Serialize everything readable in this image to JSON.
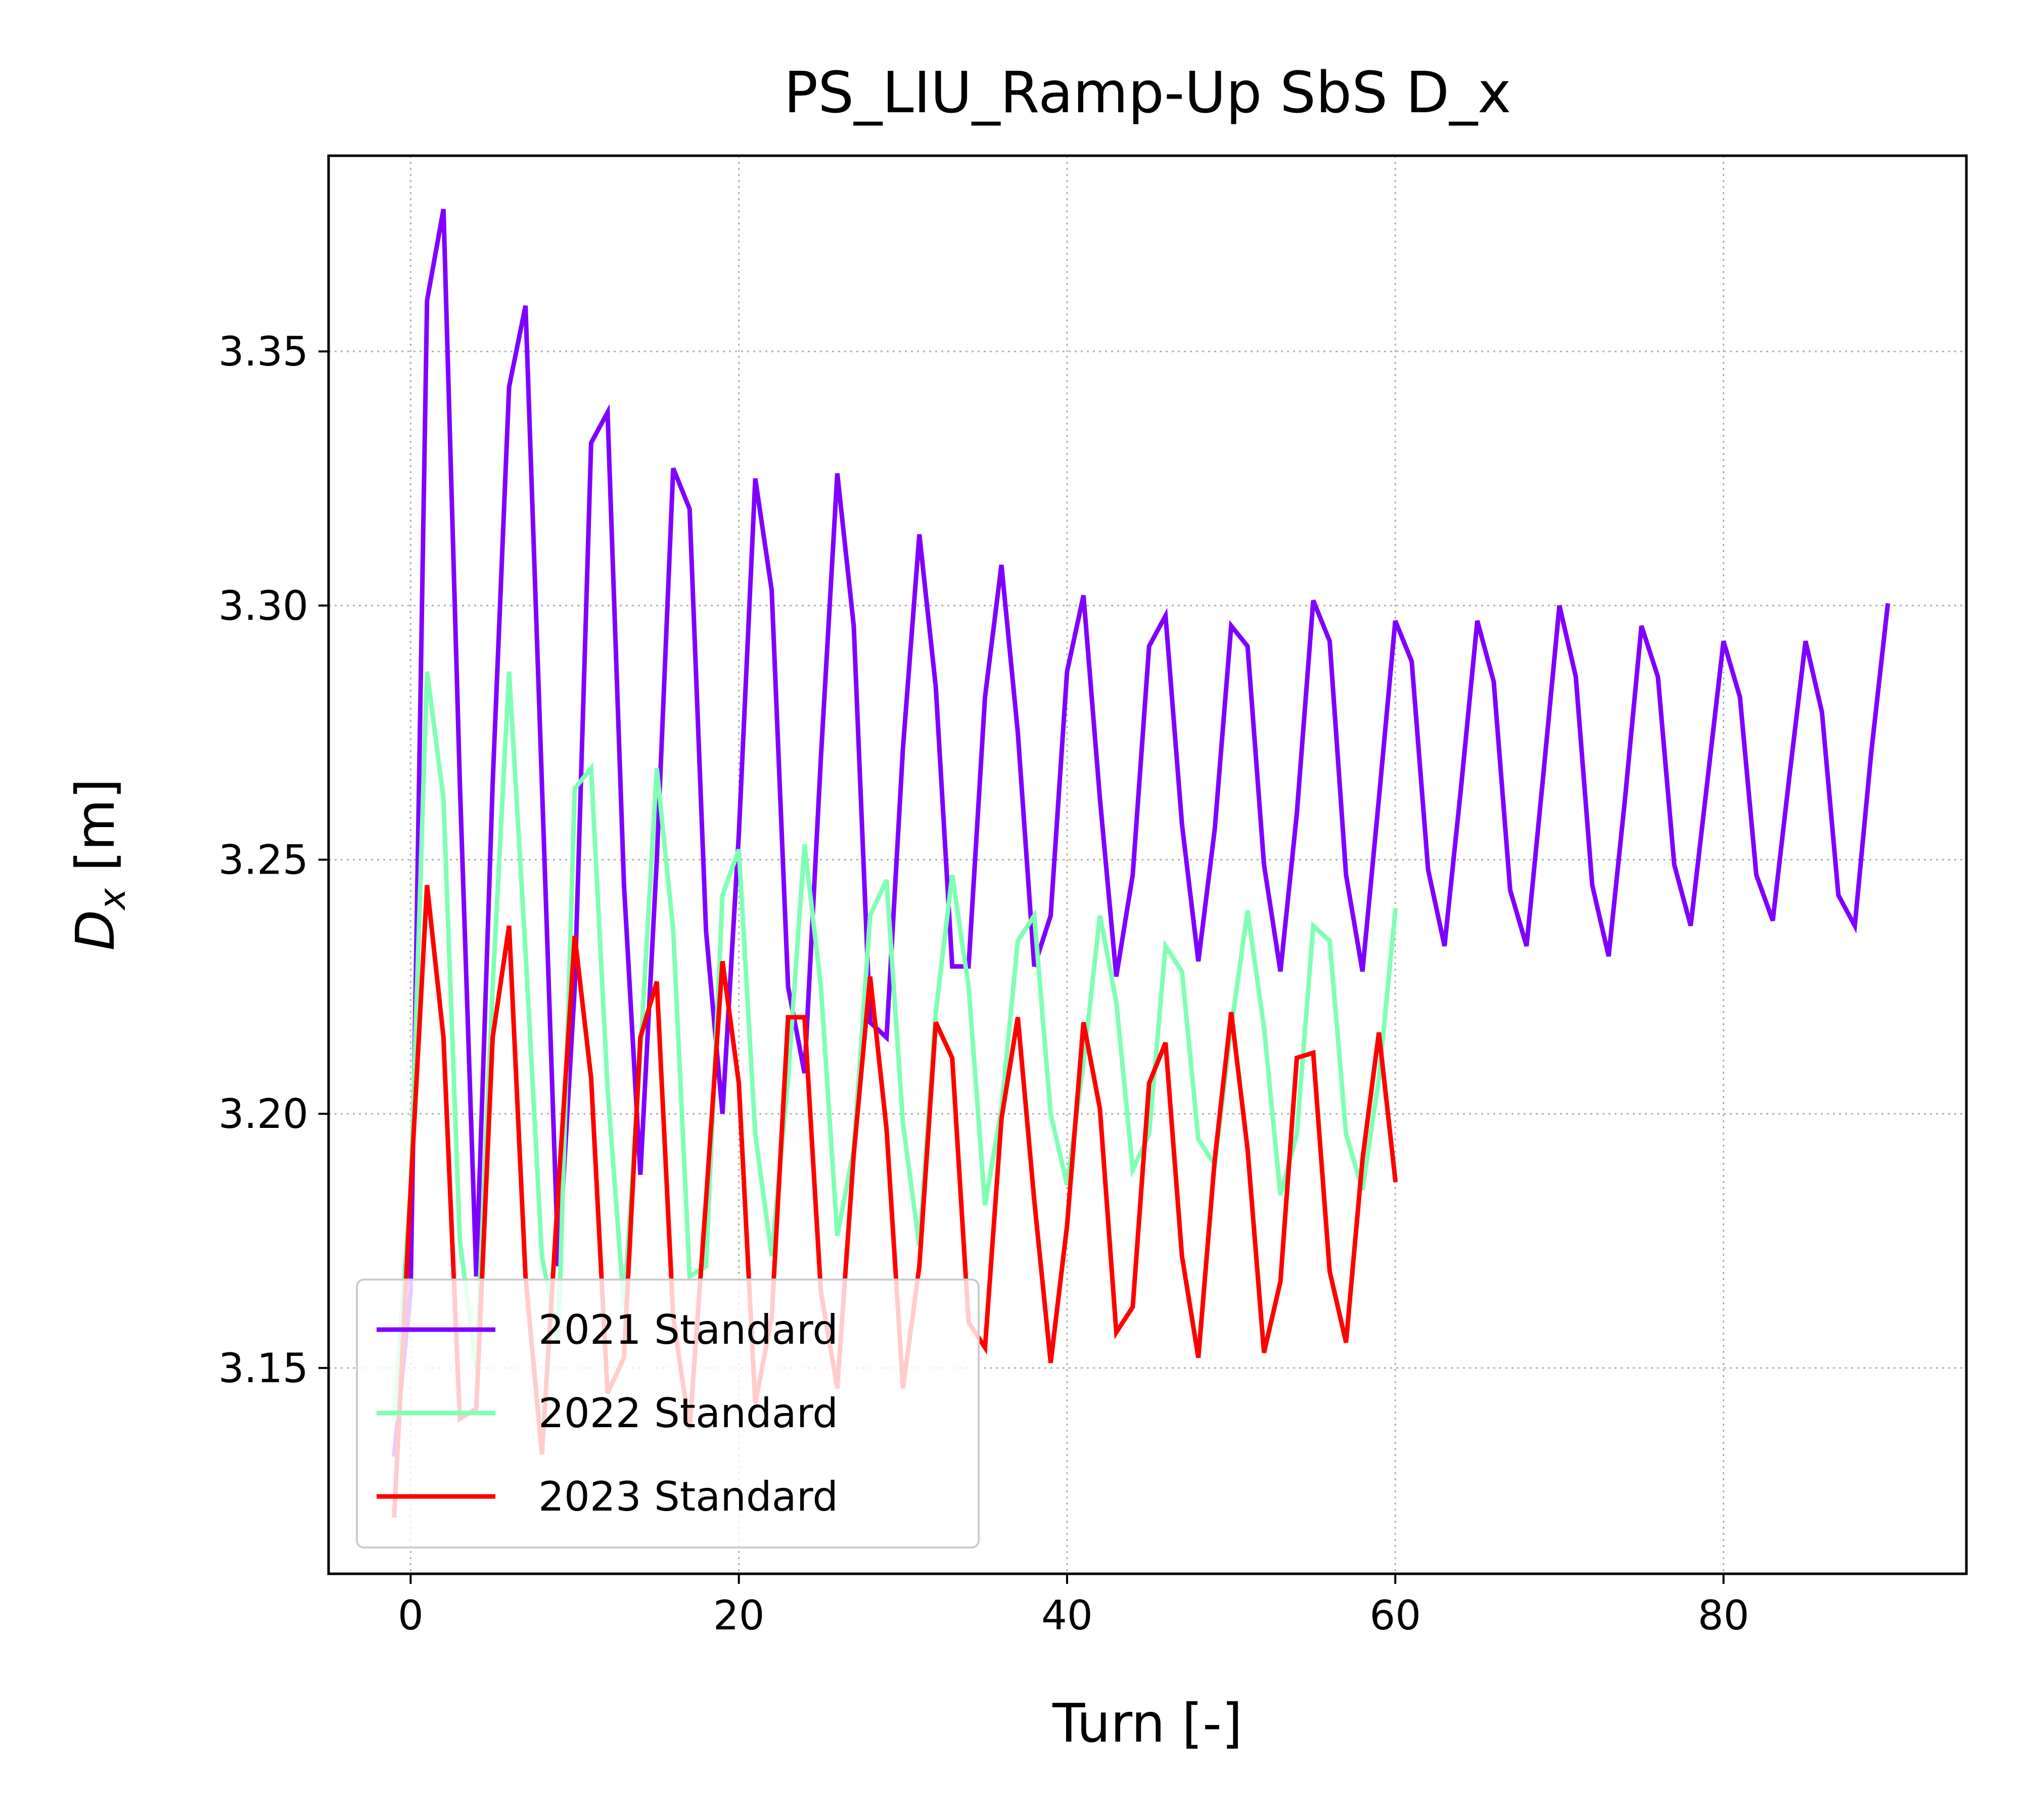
{
  "chart_data": {
    "type": "line",
    "title": "PS_LIU_Ramp-Up SbS D_x",
    "xlabel": "Turn [-]",
    "ylabel": {
      "base": "D",
      "sub": "x",
      "unit": " [m]"
    },
    "xlim": [
      -5,
      94.8
    ],
    "ylim": [
      3.1095,
      3.3885
    ],
    "xticks": [
      0,
      20,
      40,
      60,
      80
    ],
    "xtick_labels": [
      "0",
      "20",
      "40",
      "60",
      "80"
    ],
    "yticks": [
      3.15,
      3.2,
      3.25,
      3.3,
      3.35
    ],
    "ytick_labels": [
      "3.15",
      "3.20",
      "3.25",
      "3.30",
      "3.35"
    ],
    "grid": true,
    "legend_position": "lower left",
    "series": [
      {
        "name": "2021 Standard",
        "color": "#8000ff",
        "x": [
          -1,
          0,
          1,
          2,
          3,
          4,
          5,
          6,
          7,
          8,
          9,
          10,
          11,
          12,
          13,
          14,
          15,
          16,
          17,
          18,
          19,
          20,
          21,
          22,
          23,
          24,
          25,
          26,
          27,
          28,
          29,
          30,
          31,
          32,
          33,
          34,
          35,
          36,
          37,
          38,
          39,
          40,
          41,
          42,
          43,
          44,
          45,
          46,
          47,
          48,
          49,
          50,
          51,
          52,
          53,
          54,
          55,
          56,
          57,
          58,
          59,
          60,
          61,
          62,
          63,
          64,
          65,
          66,
          67,
          68,
          69,
          70,
          71,
          72,
          73,
          74,
          75,
          76,
          77,
          78,
          79,
          80,
          81,
          82,
          83,
          84,
          85,
          86,
          87,
          88,
          89,
          90
        ],
        "y": [
          3.133,
          3.165,
          3.36,
          3.378,
          3.265,
          3.168,
          3.265,
          3.343,
          3.359,
          3.265,
          3.17,
          3.225,
          3.332,
          3.338,
          3.245,
          3.188,
          3.25,
          3.327,
          3.319,
          3.236,
          3.2,
          3.255,
          3.325,
          3.303,
          3.225,
          3.208,
          3.27,
          3.326,
          3.296,
          3.218,
          3.215,
          3.272,
          3.314,
          3.284,
          3.229,
          3.229,
          3.282,
          3.308,
          3.275,
          3.229,
          3.239,
          3.287,
          3.302,
          3.262,
          3.227,
          3.247,
          3.292,
          3.298,
          3.257,
          3.23,
          3.256,
          3.296,
          3.292,
          3.249,
          3.228,
          3.259,
          3.301,
          3.293,
          3.247,
          3.228,
          3.262,
          3.297,
          3.289,
          3.248,
          3.233,
          3.264,
          3.297,
          3.285,
          3.244,
          3.233,
          3.266,
          3.3,
          3.286,
          3.245,
          3.231,
          3.262,
          3.296,
          3.286,
          3.249,
          3.237,
          3.265,
          3.293,
          3.282,
          3.247,
          3.238,
          3.266,
          3.293,
          3.279,
          3.243,
          3.237,
          3.271,
          3.3
        ]
      },
      {
        "name": "2022 Standard",
        "color": "#80ffb4",
        "x": [
          -1,
          0,
          1,
          2,
          3,
          4,
          5,
          6,
          7,
          8,
          9,
          10,
          11,
          12,
          13,
          14,
          15,
          16,
          17,
          18,
          19,
          20,
          21,
          22,
          23,
          24,
          25,
          26,
          27,
          28,
          29,
          30,
          31,
          32,
          33,
          34,
          35,
          36,
          37,
          38,
          39,
          40,
          41,
          42,
          43,
          44,
          45,
          46,
          47,
          48,
          49,
          50,
          51,
          52,
          53,
          54,
          55,
          56,
          57,
          58,
          59,
          60
        ],
        "y": [
          3.14,
          3.185,
          3.287,
          3.262,
          3.175,
          3.15,
          3.225,
          3.287,
          3.232,
          3.172,
          3.155,
          3.264,
          3.268,
          3.205,
          3.162,
          3.212,
          3.268,
          3.236,
          3.168,
          3.17,
          3.243,
          3.252,
          3.196,
          3.172,
          3.207,
          3.253,
          3.225,
          3.176,
          3.193,
          3.239,
          3.246,
          3.198,
          3.174,
          3.22,
          3.247,
          3.225,
          3.182,
          3.201,
          3.234,
          3.239,
          3.2,
          3.186,
          3.21,
          3.239,
          3.222,
          3.189,
          3.196,
          3.233,
          3.228,
          3.195,
          3.19,
          3.217,
          3.24,
          3.217,
          3.184,
          3.196,
          3.237,
          3.234,
          3.196,
          3.185,
          3.207,
          3.24
        ]
      },
      {
        "name": "2023 Standard",
        "color": "#ff0000",
        "x": [
          -1,
          0,
          1,
          2,
          3,
          4,
          5,
          6,
          7,
          8,
          9,
          10,
          11,
          12,
          13,
          14,
          15,
          16,
          17,
          18,
          19,
          20,
          21,
          22,
          23,
          24,
          25,
          26,
          27,
          28,
          29,
          30,
          31,
          32,
          33,
          34,
          35,
          36,
          37,
          38,
          39,
          40,
          41,
          42,
          43,
          44,
          45,
          46,
          47,
          48,
          49,
          50,
          51,
          52,
          53,
          54,
          55,
          56,
          57,
          58,
          59,
          60
        ],
        "y": [
          3.121,
          3.185,
          3.245,
          3.215,
          3.14,
          3.142,
          3.215,
          3.237,
          3.168,
          3.133,
          3.185,
          3.235,
          3.207,
          3.145,
          3.152,
          3.215,
          3.226,
          3.16,
          3.138,
          3.183,
          3.23,
          3.206,
          3.143,
          3.16,
          3.219,
          3.219,
          3.165,
          3.146,
          3.192,
          3.227,
          3.197,
          3.146,
          3.17,
          3.218,
          3.211,
          3.159,
          3.154,
          3.199,
          3.219,
          3.183,
          3.151,
          3.178,
          3.218,
          3.201,
          3.157,
          3.162,
          3.206,
          3.214,
          3.172,
          3.152,
          3.191,
          3.22,
          3.193,
          3.153,
          3.167,
          3.211,
          3.212,
          3.169,
          3.155,
          3.191,
          3.216,
          3.187
        ]
      }
    ]
  }
}
